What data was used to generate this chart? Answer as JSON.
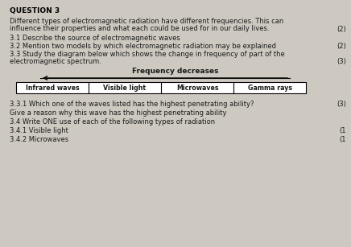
{
  "background_color": "#cdc9c0",
  "title": "QUESTION 3",
  "intro_line1": "Different types of electromagnetic radiation have different frequencies. This can",
  "intro_line2": "influence their properties and what each could be used for in our daily lives.",
  "mark_intro": "(2)",
  "q31": "3.1 Describe the source of electromagnetic waves",
  "q32": "3.2 Mention two models by which electromagnetic radiation may be explained",
  "q32_mark": "(2)",
  "q33_line1": "3.3 Study the diagram below which shows the change in frequency of part of the",
  "q33_line2": "electromagnetic spectrum.",
  "q33_mark": "(3)",
  "freq_label": "Frequency decreases",
  "em_boxes": [
    "Infrared waves",
    "Visible light",
    "Microwaves",
    "Gamma rays"
  ],
  "q331": "3.3.1 Which one of the waves listed has the highest penetrating ability?",
  "q331_mark": "(3)",
  "q331b": "Give a reason why this wave has the highest penetrating ability",
  "q34": "3.4 Write ONE use of each of the following types of radiation",
  "q341": "3.4.1 Visible light",
  "q341_mark": "(1",
  "q342": "3.4.2 Microwaves",
  "q342_mark": "(1"
}
